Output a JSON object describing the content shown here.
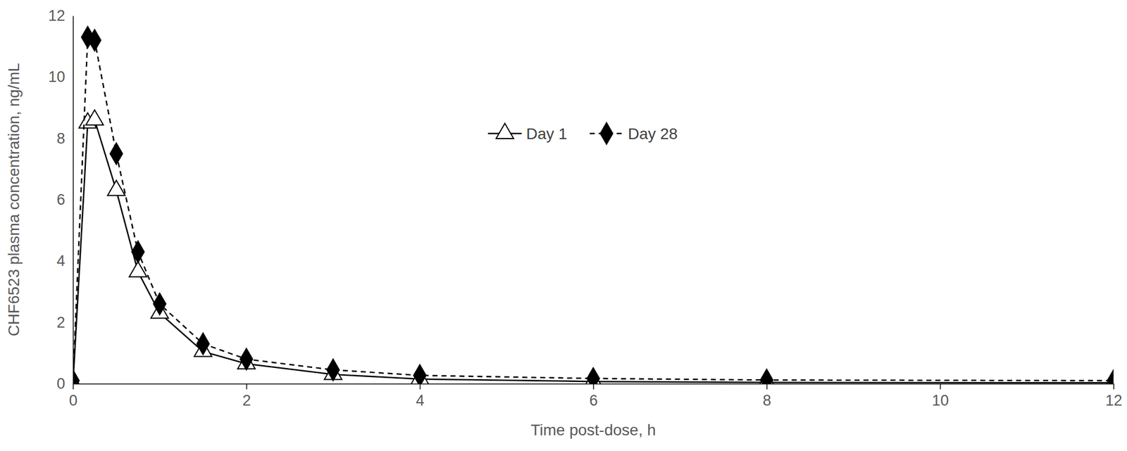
{
  "chart_data": {
    "type": "line",
    "x_label": "Time post-dose, h",
    "y_label": "CHF6523 plasma concentration, ng/mL",
    "x": [
      0,
      0.17,
      0.25,
      0.5,
      0.75,
      1,
      1.5,
      2,
      3,
      4,
      6,
      8,
      12
    ],
    "series": [
      {
        "name": "Day 1",
        "color": "#000000",
        "marker": "triangle",
        "line_style": "solid",
        "values": [
          0,
          8.5,
          8.6,
          6.3,
          3.65,
          2.3,
          1.05,
          0.65,
          0.3,
          0.15,
          0.07,
          0.04,
          0.03
        ]
      },
      {
        "name": "Day 28",
        "color": "#000000",
        "marker": "diamond",
        "line_style": "dashed",
        "values": [
          0.1,
          11.3,
          11.2,
          7.5,
          4.3,
          2.6,
          1.3,
          0.8,
          0.45,
          0.27,
          0.17,
          0.12,
          0.1
        ]
      }
    ],
    "xlim": [
      0,
      12
    ],
    "xticks": [
      0,
      2,
      4,
      6,
      8,
      10,
      12
    ],
    "ylim": [
      0,
      12
    ],
    "yticks": [
      0,
      2,
      4,
      6,
      8,
      10,
      12
    ],
    "grid": false,
    "legend": "top"
  }
}
